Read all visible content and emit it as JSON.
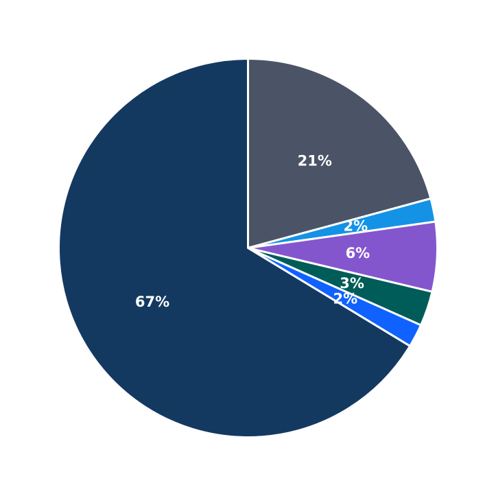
{
  "chart_data": {
    "type": "pie",
    "slices": [
      {
        "label": "21%",
        "value": 21,
        "color": "#4a5466"
      },
      {
        "label": "2%",
        "value": 2,
        "color": "#1492e6"
      },
      {
        "label": "6%",
        "value": 6,
        "color": "#8456ce"
      },
      {
        "label": "3%",
        "value": 3,
        "color": "#005c58"
      },
      {
        "label": "2%",
        "value": 2,
        "color": "#0f62fe"
      },
      {
        "label": "67%",
        "value": 67,
        "color": "#143961"
      }
    ],
    "start_angle_deg": 90,
    "direction": "clockwise",
    "legend": "none",
    "slice_border_color": "#ffffff"
  }
}
